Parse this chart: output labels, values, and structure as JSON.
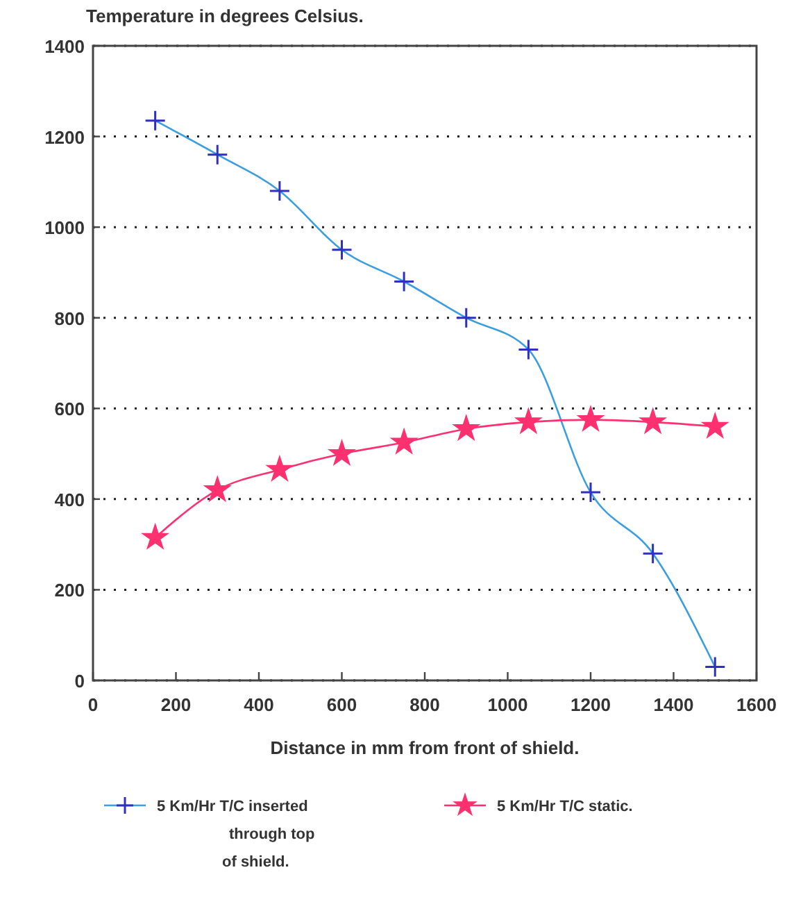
{
  "chart_data": {
    "type": "line",
    "title": "Temperature in degrees Celsius.",
    "xlabel": "Distance in mm from front of shield.",
    "x": [
      150,
      300,
      450,
      600,
      750,
      900,
      1050,
      1200,
      1350,
      1500
    ],
    "series": [
      {
        "name": "5 Km/Hr T/C inserted through top of shield.",
        "color": "#3a9ee0",
        "marker": "cross",
        "values": [
          1235,
          1160,
          1080,
          950,
          880,
          800,
          730,
          415,
          280,
          30
        ]
      },
      {
        "name": "5 Km/Hr T/C static.",
        "color": "#ff3070",
        "marker": "star",
        "values": [
          315,
          420,
          465,
          500,
          525,
          555,
          570,
          575,
          570,
          560
        ]
      }
    ],
    "xlim": [
      0,
      1600
    ],
    "xticks": [
      0,
      200,
      400,
      600,
      800,
      1000,
      1200,
      1400,
      1600
    ],
    "ylim": [
      0,
      1400
    ],
    "yticks": [
      0,
      200,
      400,
      600,
      800,
      1000,
      1200,
      1400
    ],
    "grid": "y",
    "legend": "bottom"
  }
}
